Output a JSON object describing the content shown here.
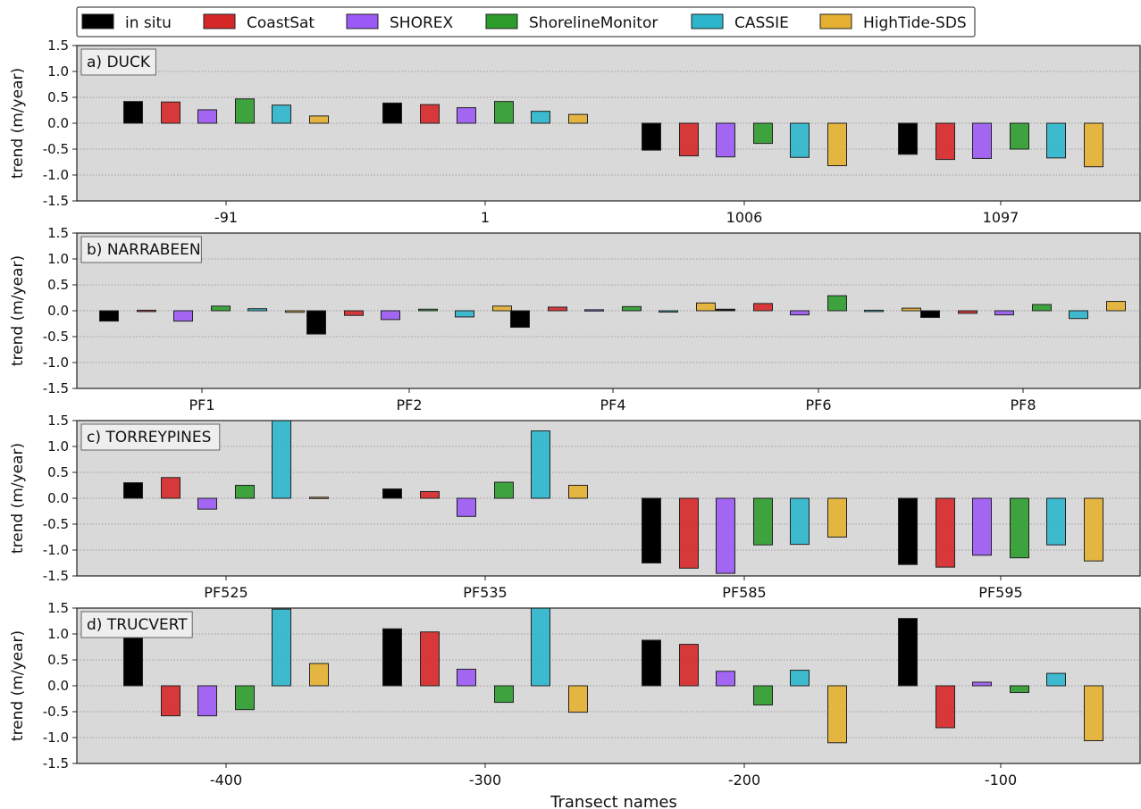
{
  "legend": {
    "placement": "top",
    "entries": [
      {
        "name": "in situ",
        "color": "#000000"
      },
      {
        "name": "CoastSat",
        "color": "#d62728"
      },
      {
        "name": "SHOREX",
        "color": "#9b59f5"
      },
      {
        "name": "ShorelineMonitor",
        "color": "#2c9c2c"
      },
      {
        "name": "CASSIE",
        "color": "#2bb6cc"
      },
      {
        "name": "HighTide-SDS",
        "color": "#e5b031"
      }
    ]
  },
  "xlabel": "Transect names",
  "chart_data": [
    {
      "type": "bar",
      "title": "a) DUCK",
      "ylabel": "trend (m/year)",
      "ylim": [
        -1.5,
        1.5
      ],
      "yticks": [
        "1.5",
        "1.0",
        "0.5",
        "0.0",
        "-0.5",
        "-1.0",
        "-1.5"
      ],
      "grid": true,
      "categories": [
        "-91",
        "1",
        "1006",
        "1097"
      ],
      "series": [
        {
          "name": "in situ",
          "values": [
            0.42,
            0.39,
            -0.52,
            -0.6
          ]
        },
        {
          "name": "CoastSat",
          "values": [
            0.41,
            0.36,
            -0.63,
            -0.7
          ]
        },
        {
          "name": "SHOREX",
          "values": [
            0.26,
            0.3,
            -0.65,
            -0.68
          ]
        },
        {
          "name": "ShorelineMonitor",
          "values": [
            0.47,
            0.42,
            -0.39,
            -0.5
          ]
        },
        {
          "name": "CASSIE",
          "values": [
            0.35,
            0.23,
            -0.66,
            -0.67
          ]
        },
        {
          "name": "HighTide-SDS",
          "values": [
            0.14,
            0.17,
            -0.82,
            -0.84
          ]
        }
      ]
    },
    {
      "type": "bar",
      "title": "b) NARRABEEN",
      "ylabel": "trend (m/year)",
      "ylim": [
        -1.5,
        1.5
      ],
      "yticks": [
        "1.5",
        "1.0",
        "0.5",
        "0.0",
        "-0.5",
        "-1.0",
        "-1.5"
      ],
      "grid": true,
      "categories": [
        "PF1",
        "PF2",
        "PF4",
        "PF6",
        "PF8"
      ],
      "series": [
        {
          "name": "in situ",
          "values": [
            -0.2,
            -0.45,
            -0.32,
            0.03,
            -0.13
          ]
        },
        {
          "name": "CoastSat",
          "values": [
            0.01,
            -0.09,
            0.07,
            0.14,
            -0.05
          ]
        },
        {
          "name": "SHOREX",
          "values": [
            -0.2,
            -0.17,
            0.02,
            -0.08,
            -0.08
          ]
        },
        {
          "name": "ShorelineMonitor",
          "values": [
            0.09,
            0.03,
            0.08,
            0.29,
            0.12
          ]
        },
        {
          "name": "CASSIE",
          "values": [
            0.04,
            -0.12,
            0.0,
            0.01,
            -0.15
          ]
        },
        {
          "name": "HighTide-SDS",
          "values": [
            -0.03,
            0.09,
            0.15,
            0.05,
            0.18
          ]
        }
      ]
    },
    {
      "type": "bar",
      "title": "c) TORREYPINES",
      "ylabel": "trend (m/year)",
      "ylim": [
        -1.5,
        1.5
      ],
      "yticks": [
        "1.5",
        "1.0",
        "0.5",
        "0.0",
        "-0.5",
        "-1.0",
        "-1.5"
      ],
      "grid": true,
      "categories": [
        "PF525",
        "PF535",
        "PF585",
        "PF595"
      ],
      "series": [
        {
          "name": "in situ",
          "values": [
            0.3,
            0.18,
            -1.25,
            -1.28
          ]
        },
        {
          "name": "CoastSat",
          "values": [
            0.4,
            0.13,
            -1.35,
            -1.33
          ]
        },
        {
          "name": "SHOREX",
          "values": [
            -0.21,
            -0.35,
            -1.45,
            -1.1
          ]
        },
        {
          "name": "ShorelineMonitor",
          "values": [
            0.25,
            0.31,
            -0.9,
            -1.15
          ]
        },
        {
          "name": "CASSIE",
          "values": [
            1.5,
            1.3,
            -0.89,
            -0.9
          ]
        },
        {
          "name": "HighTide-SDS",
          "values": [
            0.02,
            0.25,
            -0.75,
            -1.21
          ]
        }
      ]
    },
    {
      "type": "bar",
      "title": "d) TRUCVERT",
      "ylabel": "trend (m/year)",
      "ylim": [
        -1.5,
        1.5
      ],
      "yticks": [
        "1.5",
        "1.0",
        "0.5",
        "0.0",
        "-0.5",
        "-1.0",
        "-1.5"
      ],
      "grid": true,
      "categories": [
        "-400",
        "-300",
        "-200",
        "-100"
      ],
      "series": [
        {
          "name": "in situ",
          "values": [
            1.08,
            1.1,
            0.88,
            1.3
          ]
        },
        {
          "name": "CoastSat",
          "values": [
            -0.58,
            1.04,
            0.8,
            -0.81
          ]
        },
        {
          "name": "SHOREX",
          "values": [
            -0.58,
            0.32,
            0.28,
            0.07
          ]
        },
        {
          "name": "ShorelineMonitor",
          "values": [
            -0.46,
            -0.32,
            -0.37,
            -0.13
          ]
        },
        {
          "name": "CASSIE",
          "values": [
            1.48,
            1.5,
            0.3,
            0.24
          ]
        },
        {
          "name": "HighTide-SDS",
          "values": [
            0.43,
            -0.51,
            -1.1,
            -1.06
          ]
        }
      ]
    }
  ]
}
